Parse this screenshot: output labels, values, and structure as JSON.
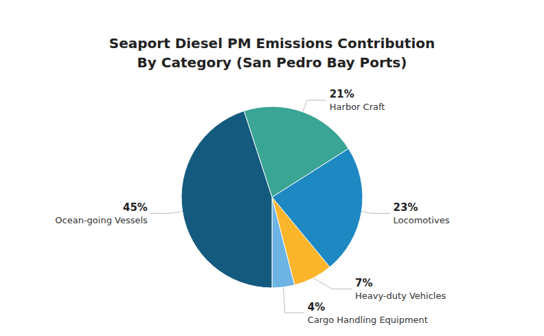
{
  "chart_data": {
    "type": "pie",
    "title": "Seaport Diesel PM Emissions Contribution\nBy Category (San Pedro Bay Ports)",
    "categories": [
      "Harbor Craft",
      "Locomotives",
      "Heavy-duty Vehicles",
      "Cargo Handling Equipment",
      "Ocean-going Vessels"
    ],
    "values": [
      21,
      23,
      7,
      4,
      45
    ],
    "value_labels": [
      "21%",
      "23%",
      "7%",
      "4%",
      "45%"
    ],
    "colors": [
      "#3aa594",
      "#1e88c2",
      "#fbb52b",
      "#6db4e4",
      "#135a7e"
    ],
    "data_labels": true
  }
}
